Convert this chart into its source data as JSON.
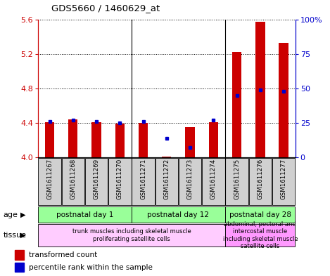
{
  "title": "GDS5660 / 1460629_at",
  "samples": [
    "GSM1611267",
    "GSM1611268",
    "GSM1611269",
    "GSM1611270",
    "GSM1611271",
    "GSM1611272",
    "GSM1611273",
    "GSM1611274",
    "GSM1611275",
    "GSM1611276",
    "GSM1611277"
  ],
  "transformed_count": [
    4.41,
    4.44,
    4.41,
    4.39,
    4.4,
    4.01,
    4.35,
    4.41,
    5.22,
    5.57,
    5.33
  ],
  "percentile_rank": [
    26,
    27,
    26,
    25,
    26,
    14,
    7,
    27,
    45,
    49,
    48
  ],
  "ymin": 4.0,
  "ymax": 5.6,
  "y_ticks": [
    4.0,
    4.4,
    4.8,
    5.2,
    5.6
  ],
  "y2min": 0,
  "y2max": 100,
  "y2_ticks": [
    0,
    25,
    50,
    75,
    100
  ],
  "y2_tick_labels": [
    "0",
    "25",
    "50",
    "75",
    "100%"
  ],
  "bar_color": "#cc0000",
  "dot_color": "#0000cc",
  "age_groups": [
    {
      "label": "postnatal day 1",
      "start": 0,
      "end": 4
    },
    {
      "label": "postnatal day 12",
      "start": 4,
      "end": 8
    },
    {
      "label": "postnatal day 28",
      "start": 8,
      "end": 11
    }
  ],
  "tissue_groups": [
    {
      "label": "trunk muscles including skeletal muscle\nproliferating satellite cells",
      "start": 0,
      "end": 8,
      "color": "#ffccff"
    },
    {
      "label": "abdominal, pectoral and\nintercostal muscle\nincluding skeletal muscle\nsatellite cells",
      "start": 8,
      "end": 11,
      "color": "#ff99ff"
    }
  ],
  "age_dividers": [
    4,
    8
  ],
  "left_axis_color": "#cc0000",
  "right_axis_color": "#0000cc",
  "age_color": "#99ff99",
  "names_bg_color": "#d0d0d0",
  "bar_width": 0.4
}
